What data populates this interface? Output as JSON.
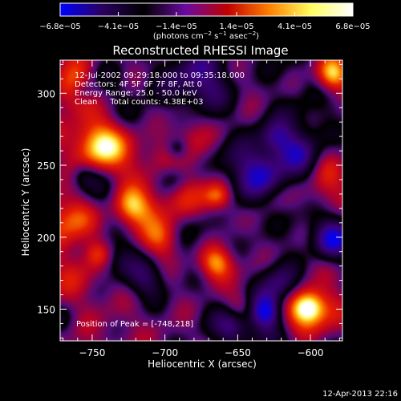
{
  "chart_data": {
    "type": "heatmap",
    "title": "Reconstructed RHESSI Image",
    "xlabel": "Heliocentric X (arcsec)",
    "ylabel": "Heliocentric Y (arcsec)",
    "xlim": [
      -772,
      -578
    ],
    "ylim": [
      128,
      323
    ],
    "x_ticks": [
      -750,
      -700,
      -650,
      -600
    ],
    "y_ticks": [
      150,
      200,
      250,
      300
    ],
    "x_tick_labels": [
      "−750",
      "−700",
      "−650",
      "−600"
    ],
    "y_tick_labels": [
      "150",
      "200",
      "250",
      "300"
    ],
    "colorbar": {
      "range": [
        -6.8e-05,
        6.8e-05
      ],
      "tick_values": [
        -6.8e-05,
        -4.1e-05,
        -1.4e-05,
        1.4e-05,
        4.1e-05,
        6.8e-05
      ],
      "tick_labels": [
        "−6.8e−05",
        "−4.1e−05",
        "−1.4e−05",
        "1.4e−05",
        "4.1e−05",
        "6.8e−05"
      ],
      "units_prefix": "(photons cm",
      "units_exp1": "−2",
      "units_mid": " s",
      "units_exp2": "−1",
      "units_mid2": " asec",
      "units_exp3": "−2",
      "units_suffix": ")",
      "colors": [
        "#0000ff",
        "#2a0060",
        "#000000",
        "#6a0aa0",
        "#c00000",
        "#ff8000",
        "#ffff60",
        "#ffffff"
      ]
    },
    "annotations": [
      "12-Jul-2002 09:29:18.000 to 09:35:18.000",
      "Detectors: 4F 5F 6F 7F 8F, Att 0",
      "Energy Range: 25.0 - 50.0 keV",
      "Clean     Total counts: 4.38E+03"
    ],
    "peak_label": "Position of Peak = [-748,218]",
    "peak": [
      -748,
      218
    ]
  },
  "timestamp": "12-Apr-2013 22:16"
}
